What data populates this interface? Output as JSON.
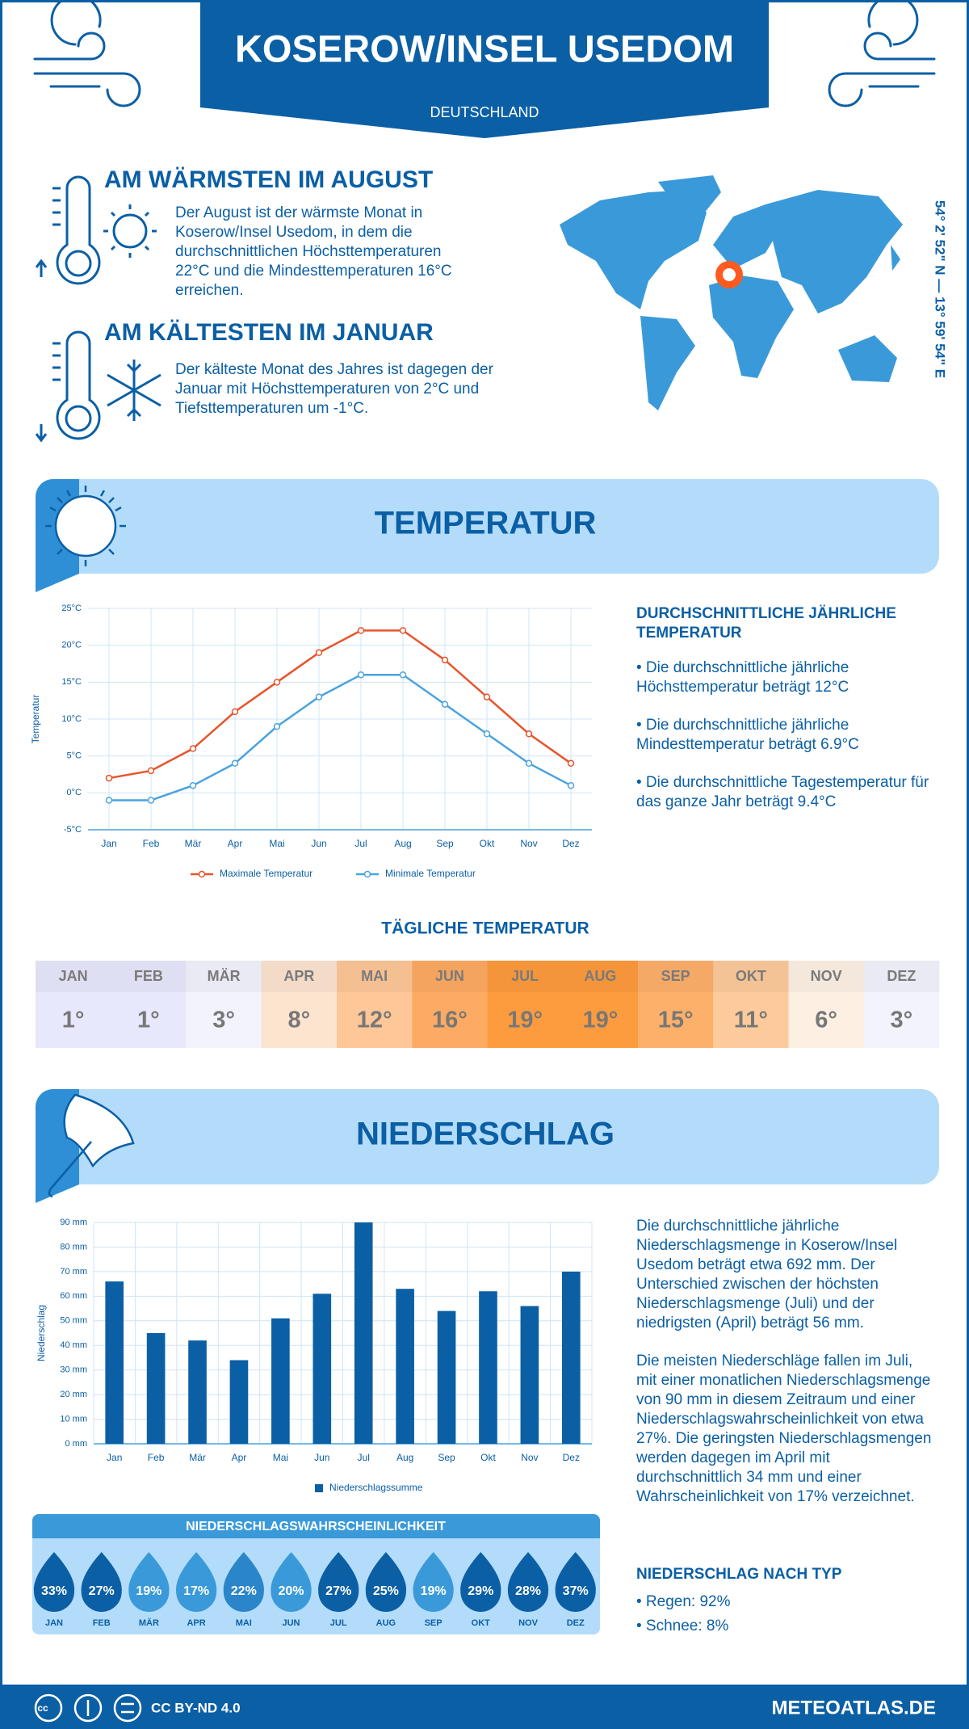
{
  "header": {
    "title": "KOSEROW/INSEL USEDOM",
    "subtitle": "DEUTSCHLAND"
  },
  "warmest": {
    "title": "AM WÄRMSTEN IM AUGUST",
    "text": "Der August ist der wärmste Monat in Koserow/Insel Usedom, in dem die durchschnittlichen Höchsttemperaturen 22°C und die Mindesttemperaturen 16°C erreichen."
  },
  "coldest": {
    "title": "AM KÄLTESTEN IM JANUAR",
    "text": "Der kälteste Monat des Jahres ist dagegen der Januar mit Höchsttemperaturen von 2°C und Tiefsttemperaturen um -1°C."
  },
  "coordinates": "54° 2' 52\" N — 13° 59' 54\" E",
  "temperature_section": {
    "title": "TEMPERATUR",
    "summary_title": "DURCHSCHNITTLICHE JÄHRLICHE TEMPERATUR",
    "bullets": [
      "• Die durchschnittliche jährliche Höchsttemperatur beträgt 12°C",
      "• Die durchschnittliche jährliche Mindesttemperatur beträgt 6.9°C",
      "• Die durchschnittliche Tagestemperatur für das ganze Jahr beträgt 9.4°C"
    ]
  },
  "daily_temperature": {
    "title": "TÄGLICHE TEMPERATUR",
    "months": [
      "JAN",
      "FEB",
      "MÄR",
      "APR",
      "MAI",
      "JUN",
      "JUL",
      "AUG",
      "SEP",
      "OKT",
      "NOV",
      "DEZ"
    ],
    "values": [
      1,
      1,
      3,
      8,
      12,
      16,
      19,
      19,
      15,
      11,
      6,
      3
    ],
    "value_labels": [
      "1°",
      "1°",
      "3°",
      "8°",
      "12°",
      "16°",
      "19°",
      "19°",
      "15°",
      "11°",
      "6°",
      "3°"
    ],
    "colors": [
      "#e8e8fc",
      "#e8e8fc",
      "#f3f3fd",
      "#fde4cf",
      "#fdc797",
      "#fdab62",
      "#fd9b3f",
      "#fd9b3f",
      "#fdb06a",
      "#fdcb9b",
      "#fdf0e3",
      "#f3f3fd"
    ]
  },
  "precipitation_section": {
    "title": "NIEDERSCHLAG",
    "paragraphs": [
      "Die durchschnittliche jährliche Niederschlagsmenge in Koserow/Insel Usedom beträgt etwa 692 mm. Der Unterschied zwischen der höchsten Niederschlagsmenge (Juli) und der niedrigsten (April) beträgt 56 mm.",
      "Die meisten Niederschläge fallen im Juli, mit einer monatlichen Niederschlagsmenge von 90 mm in diesem Zeitraum und einer Niederschlagswahrscheinlichkeit von etwa 27%. Die geringsten Niederschlagsmengen werden dagegen im April mit durchschnittlich 34 mm und einer Wahrscheinlichkeit von 17% verzeichnet."
    ],
    "type_title": "NIEDERSCHLAG NACH TYP",
    "types": [
      "• Regen: 92%",
      "• Schnee: 8%"
    ]
  },
  "precipitation_probability": {
    "title": "NIEDERSCHLAGSWAHRSCHEINLICHKEIT",
    "months": [
      "JAN",
      "FEB",
      "MÄR",
      "APR",
      "MAI",
      "JUN",
      "JUL",
      "AUG",
      "SEP",
      "OKT",
      "NOV",
      "DEZ"
    ],
    "values": [
      33,
      27,
      19,
      17,
      22,
      20,
      27,
      25,
      19,
      29,
      28,
      37
    ],
    "value_labels": [
      "33%",
      "27%",
      "19%",
      "17%",
      "22%",
      "20%",
      "27%",
      "25%",
      "19%",
      "29%",
      "28%",
      "37%"
    ],
    "colors": [
      "#0b5fa5",
      "#0b5fa5",
      "#3a9ad9",
      "#3a9ad9",
      "#2b86c9",
      "#3a9ad9",
      "#0b5fa5",
      "#0b5fa5",
      "#3a9ad9",
      "#0b5fa5",
      "#0b5fa5",
      "#0b5fa5"
    ]
  },
  "footer": {
    "license": "CC BY-ND 4.0",
    "site": "METEOATLAS.DE"
  },
  "chart_data": [
    {
      "type": "line",
      "y_label": "Temperatur",
      "categories": [
        "Jan",
        "Feb",
        "Mär",
        "Apr",
        "Mai",
        "Jun",
        "Jul",
        "Aug",
        "Sep",
        "Okt",
        "Nov",
        "Dez"
      ],
      "series": [
        {
          "name": "Maximale Temperatur",
          "color": "#e8542a",
          "values": [
            2,
            3,
            6,
            11,
            15,
            19,
            22,
            22,
            18,
            13,
            8,
            4
          ]
        },
        {
          "name": "Minimale Temperatur",
          "color": "#4ba3de",
          "values": [
            -1,
            -1,
            1,
            4,
            9,
            13,
            16,
            16,
            12,
            8,
            4,
            1
          ]
        }
      ],
      "ylim": [
        -5,
        25
      ],
      "yticks": [
        {
          "value": -5,
          "label": "-5°C"
        },
        {
          "value": 0,
          "label": "0°C"
        },
        {
          "value": 5,
          "label": "5°C"
        },
        {
          "value": 10,
          "label": "10°C"
        },
        {
          "value": 15,
          "label": "15°C"
        },
        {
          "value": 20,
          "label": "20°C"
        },
        {
          "value": 25,
          "label": "25°C"
        }
      ],
      "grid": true
    },
    {
      "type": "bar",
      "y_label": "Niederschlag",
      "categories": [
        "Jan",
        "Feb",
        "Mär",
        "Apr",
        "Mai",
        "Jun",
        "Jul",
        "Aug",
        "Sep",
        "Okt",
        "Nov",
        "Dez"
      ],
      "series": [
        {
          "name": "Niederschlagssumme",
          "color": "#0b5fa5",
          "values": [
            66,
            45,
            42,
            34,
            51,
            61,
            90,
            63,
            54,
            62,
            56,
            70
          ]
        }
      ],
      "ylim": [
        0,
        90
      ],
      "yticks": [
        {
          "value": 0,
          "label": "0 mm"
        },
        {
          "value": 10,
          "label": "10 mm"
        },
        {
          "value": 20,
          "label": "20 mm"
        },
        {
          "value": 30,
          "label": "30 mm"
        },
        {
          "value": 40,
          "label": "40 mm"
        },
        {
          "value": 50,
          "label": "50 mm"
        },
        {
          "value": 60,
          "label": "60 mm"
        },
        {
          "value": 70,
          "label": "70 mm"
        },
        {
          "value": 80,
          "label": "80 mm"
        },
        {
          "value": 90,
          "label": "90 mm"
        }
      ],
      "grid": true
    }
  ]
}
